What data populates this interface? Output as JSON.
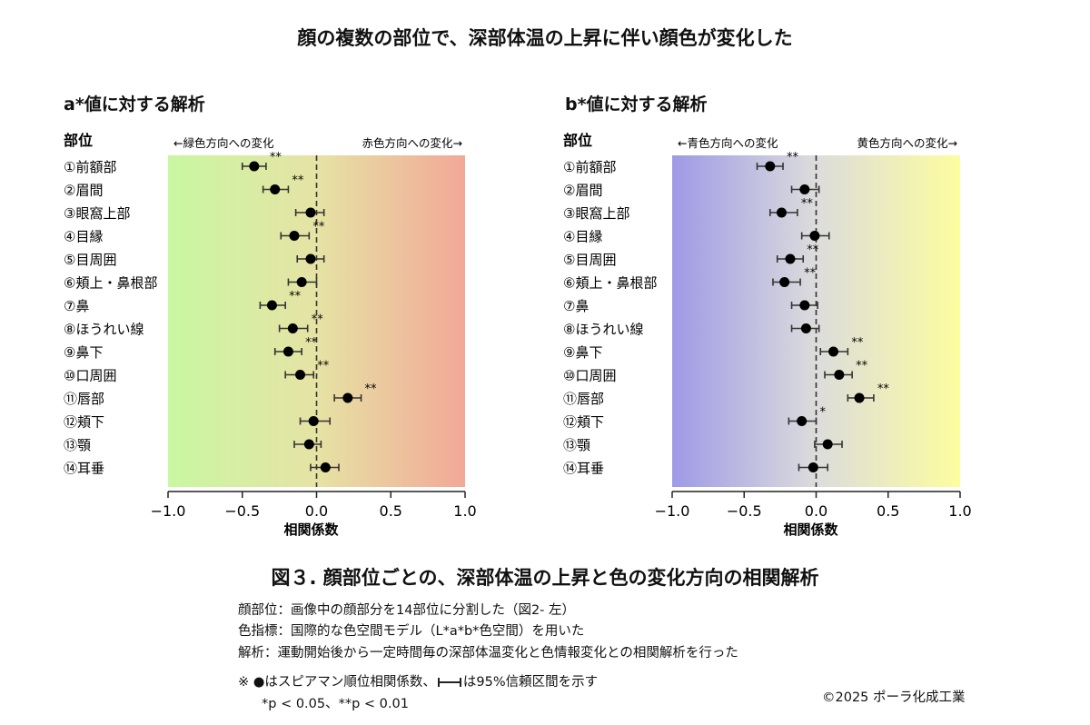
{
  "title": "顔の複数の部位で、深部体温の上昇に伴い顔色が変化した",
  "caption": "図３. 顔部位ごとの、深部体温の上昇と色の変化方向の相関解析",
  "notes": [
    "顔部位：画像中の顔部分を14部位に分割した（図2- 左）",
    "色指標：国際的な色空間モデル（L*a*b*色空間）を用いた",
    "解析：運動開始後から一定時間毎の深部体温変化と色情報変化との相関解析を行った"
  ],
  "footnote": {
    "prefix": "※ ●はスピアマン順位相関係数、",
    "ci_icon": "confidence-interval-bar-icon",
    "suffix": "は95%信頼区間を示す",
    "significance": "*p < 0.05、**p < 0.01"
  },
  "copyright": "©2025 ポーラ化成工業",
  "chart_data": [
    {
      "type": "forest",
      "title": "a*値に対する解析",
      "row_header": "部位",
      "left_direction": "←緑色方向への変化",
      "right_direction": "赤色方向への変化→",
      "xlabel": "相関係数",
      "xlim": [
        -1.0,
        1.0
      ],
      "xticks": [
        "−1.0",
        "−0.5",
        "0.0",
        "0.5",
        "1.0"
      ],
      "reference_line": 0,
      "background_gradient": [
        "#c9f7a2",
        "#e6e3a4",
        "#f2a898"
      ],
      "categories": [
        "①前額部",
        "②眉間",
        "③眼窩上部",
        "④目縁",
        "⑤目周囲",
        "⑥頬上・鼻根部",
        "⑦鼻",
        "⑧ほうれい線",
        "⑨鼻下",
        "⑩口周囲",
        "⑪唇部",
        "⑫頬下",
        "⑬顎",
        "⑭耳垂"
      ],
      "values": [
        -0.42,
        -0.28,
        -0.04,
        -0.15,
        -0.04,
        -0.1,
        -0.3,
        -0.16,
        -0.19,
        -0.11,
        0.21,
        -0.02,
        -0.05,
        0.06
      ],
      "ci_low": [
        -0.5,
        -0.36,
        -0.14,
        -0.24,
        -0.13,
        -0.19,
        -0.38,
        -0.25,
        -0.28,
        -0.21,
        0.12,
        -0.11,
        -0.15,
        -0.04
      ],
      "ci_high": [
        -0.34,
        -0.19,
        0.05,
        -0.05,
        0.05,
        0.0,
        -0.21,
        -0.06,
        -0.1,
        -0.02,
        0.3,
        0.09,
        0.03,
        0.15
      ],
      "significance": [
        "**",
        "**",
        "",
        "**",
        "",
        "",
        "**",
        "**",
        "**",
        "**",
        "**",
        "",
        "",
        ""
      ]
    },
    {
      "type": "forest",
      "title": "b*値に対する解析",
      "row_header": "部位",
      "left_direction": "←青色方向への変化",
      "right_direction": "黄色方向への変化→",
      "xlabel": "相関係数",
      "xlim": [
        -1.0,
        1.0
      ],
      "xticks": [
        "−1.0",
        "−0.5",
        "0.0",
        "0.5",
        "1.0"
      ],
      "reference_line": 0,
      "background_gradient": [
        "#9e9ae6",
        "#dcdcdc",
        "#fdfda0"
      ],
      "categories": [
        "①前額部",
        "②眉間",
        "③眼窩上部",
        "④目縁",
        "⑤目周囲",
        "⑥頬上・鼻根部",
        "⑦鼻",
        "⑧ほうれい線",
        "⑨鼻下",
        "⑩口周囲",
        "⑪唇部",
        "⑫頬下",
        "⑬顎",
        "⑭耳垂"
      ],
      "values": [
        -0.32,
        -0.08,
        -0.24,
        -0.01,
        -0.18,
        -0.22,
        -0.08,
        -0.07,
        0.12,
        0.16,
        0.3,
        -0.1,
        0.08,
        -0.02
      ],
      "ci_low": [
        -0.41,
        -0.17,
        -0.32,
        -0.1,
        -0.27,
        -0.3,
        -0.17,
        -0.17,
        0.03,
        0.06,
        0.22,
        -0.19,
        -0.01,
        -0.12
      ],
      "ci_high": [
        -0.23,
        0.02,
        -0.13,
        0.09,
        -0.09,
        -0.11,
        0.01,
        0.02,
        0.22,
        0.25,
        0.4,
        0.0,
        0.18,
        0.08
      ],
      "significance": [
        "**",
        "",
        "**",
        "",
        "**",
        "**",
        "",
        "",
        "**",
        "**",
        "**",
        "*",
        "",
        ""
      ]
    }
  ]
}
